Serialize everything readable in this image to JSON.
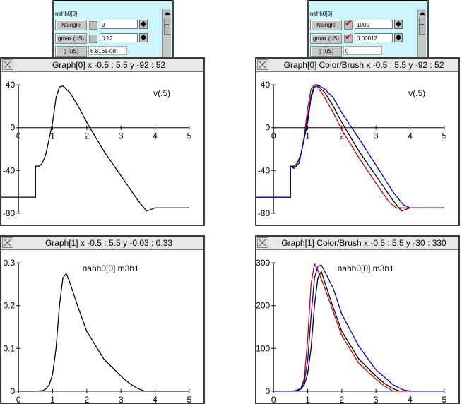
{
  "panels": [
    {
      "title": "nahh0[0]",
      "rows": [
        {
          "label": "Nsingle",
          "value": "0",
          "checked": false
        },
        {
          "label": "gmax (uS)",
          "value": "0.12",
          "checked": false
        },
        {
          "label": "g (uS)",
          "value": "6.816e-08"
        }
      ]
    },
    {
      "title": "nahh0[0]",
      "rows": [
        {
          "label": "Nsingle",
          "value": "1000",
          "checked": true
        },
        {
          "label": "gmax (uS)",
          "value": "0.00012",
          "checked": true
        },
        {
          "label": "g (uS)",
          "value": "0"
        }
      ]
    }
  ],
  "graphs": [
    {
      "title": "Graph[0]  x -0.5 : 5.5  y -92 : 52"
    },
    {
      "title": "Graph[0] Color/Brush x -0.5 : 5.5  y -92 : 52"
    },
    {
      "title": "Graph[1]  x -0.5 : 5.5  y -0.03 : 0.33"
    },
    {
      "title": "Graph[1] Color/Brush x -0.5 : 5.5  y -30 : 330"
    }
  ],
  "chart_data": [
    {
      "type": "line",
      "annotation": "v(.5)",
      "xlim": [
        -0.5,
        5.5
      ],
      "ylim": [
        -92,
        52
      ],
      "xticks": [
        "0",
        "1",
        "2",
        "3",
        "4",
        "5"
      ],
      "xtick_values": [
        0,
        1,
        2,
        3,
        4,
        5
      ],
      "yticks": [
        "40",
        "0",
        "-40",
        "-80"
      ],
      "ytick_values": [
        40,
        0,
        -40,
        -80
      ],
      "series": [
        {
          "color": "#000000",
          "x": [
            -0.5,
            0.5,
            0.5,
            0.6,
            0.7,
            0.8,
            0.9,
            1.0,
            1.1,
            1.2,
            1.3,
            1.5,
            1.75,
            2.0,
            2.5,
            3.0,
            3.5,
            3.75,
            4.0,
            4.25,
            5.0
          ],
          "y": [
            -65,
            -65,
            -36,
            -36,
            -33,
            -25,
            -10,
            5,
            28,
            38,
            39,
            33,
            20,
            5,
            -22,
            -45,
            -68,
            -78,
            -75,
            -75,
            -75
          ]
        }
      ]
    },
    {
      "type": "line",
      "annotation": "v(.5)",
      "xlim": [
        -0.5,
        5.5
      ],
      "ylim": [
        -92,
        52
      ],
      "xticks": [
        "0",
        "1",
        "2",
        "3",
        "4",
        "5"
      ],
      "xtick_values": [
        0,
        1,
        2,
        3,
        4,
        5
      ],
      "yticks": [
        "40",
        "0",
        "-40",
        "-80"
      ],
      "ytick_values": [
        40,
        0,
        -40,
        -80
      ],
      "series": [
        {
          "color": "#000000",
          "x": [
            -0.5,
            0.5,
            0.5,
            0.6,
            0.7,
            0.8,
            0.9,
            1.0,
            1.1,
            1.2,
            1.3,
            1.5,
            1.75,
            2.0,
            2.5,
            3.0,
            3.5,
            3.75,
            4.0,
            4.25,
            5.0
          ],
          "y": [
            -65,
            -65,
            -36,
            -36,
            -33,
            -25,
            -10,
            5,
            28,
            38,
            39,
            33,
            20,
            5,
            -22,
            -45,
            -68,
            -78,
            -75,
            -75,
            -75
          ]
        },
        {
          "color": "#cc0000",
          "x": [
            -0.5,
            0.5,
            0.5,
            0.6,
            0.75,
            0.9,
            1.0,
            1.1,
            1.2,
            1.3,
            1.5,
            1.75,
            2.0,
            2.5,
            3.0,
            3.4,
            3.6,
            3.8,
            5.0
          ],
          "y": [
            -65,
            -65,
            -36,
            -38,
            -33,
            -8,
            18,
            36,
            40,
            38,
            28,
            14,
            -2,
            -28,
            -52,
            -70,
            -75,
            -75,
            -75
          ]
        },
        {
          "color": "#0000cc",
          "x": [
            -0.5,
            0.5,
            0.5,
            0.6,
            0.75,
            0.9,
            1.0,
            1.1,
            1.2,
            1.3,
            1.5,
            1.75,
            2.0,
            2.5,
            3.0,
            3.5,
            3.8,
            4.0,
            5.0
          ],
          "y": [
            -65,
            -65,
            -36,
            -38,
            -33,
            -10,
            10,
            30,
            40,
            40,
            36,
            28,
            14,
            -10,
            -35,
            -60,
            -72,
            -75,
            -75
          ]
        }
      ]
    },
    {
      "type": "line",
      "annotation": "nahh0[0].m3h1",
      "xlim": [
        -0.5,
        5.5
      ],
      "ylim": [
        -0.03,
        0.33
      ],
      "xticks": [
        "0",
        "1",
        "2",
        "3",
        "4",
        "5"
      ],
      "xtick_values": [
        0,
        1,
        2,
        3,
        4,
        5
      ],
      "yticks": [
        "0.3",
        "0.2",
        "0.1",
        "0"
      ],
      "ytick_values": [
        0.3,
        0.2,
        0.1,
        0
      ],
      "series": [
        {
          "color": "#000000",
          "x": [
            0,
            0.5,
            0.7,
            0.8,
            0.9,
            1.0,
            1.1,
            1.2,
            1.3,
            1.4,
            1.5,
            1.75,
            2.0,
            2.5,
            3.0,
            3.25,
            3.5,
            3.7,
            5.0
          ],
          "y": [
            0,
            0,
            0.001,
            0.005,
            0.015,
            0.04,
            0.1,
            0.2,
            0.265,
            0.275,
            0.255,
            0.195,
            0.14,
            0.075,
            0.035,
            0.018,
            0.006,
            0,
            0
          ]
        }
      ]
    },
    {
      "type": "line",
      "annotation": "nahh0[0].m3h1",
      "xlim": [
        -0.5,
        5.5
      ],
      "ylim": [
        -30,
        330
      ],
      "xticks": [
        "0",
        "1",
        "2",
        "3",
        "4",
        "5"
      ],
      "xtick_values": [
        0,
        1,
        2,
        3,
        4,
        5
      ],
      "yticks": [
        "300",
        "200",
        "100",
        "0"
      ],
      "ytick_values": [
        300,
        200,
        100,
        0
      ],
      "series": [
        {
          "color": "#000000",
          "x": [
            0,
            0.5,
            0.7,
            0.8,
            0.9,
            1.0,
            1.1,
            1.2,
            1.3,
            1.4,
            1.5,
            1.75,
            2.0,
            2.5,
            3.0,
            3.25,
            3.5,
            3.7,
            5.0
          ],
          "y": [
            0,
            0,
            1,
            5,
            15,
            40,
            100,
            200,
            265,
            280,
            255,
            195,
            140,
            75,
            35,
            18,
            6,
            0,
            0
          ]
        },
        {
          "color": "#cc0000",
          "x": [
            0,
            0.6,
            0.8,
            0.9,
            1.0,
            1.1,
            1.2,
            1.3,
            1.4,
            1.5,
            1.75,
            2.0,
            2.5,
            3.0,
            3.25,
            3.5,
            5.0
          ],
          "y": [
            0,
            0,
            6,
            30,
            120,
            250,
            298,
            282,
            262,
            242,
            185,
            130,
            65,
            28,
            12,
            0,
            0
          ]
        },
        {
          "color": "#0000cc",
          "x": [
            0,
            0.6,
            0.8,
            0.9,
            1.0,
            1.1,
            1.2,
            1.3,
            1.4,
            1.5,
            1.75,
            2.0,
            2.5,
            3.0,
            3.5,
            3.8,
            4.0,
            5.0
          ],
          "y": [
            0,
            0,
            6,
            22,
            70,
            175,
            265,
            292,
            295,
            280,
            240,
            180,
            105,
            50,
            15,
            3,
            0,
            0
          ]
        }
      ]
    }
  ]
}
